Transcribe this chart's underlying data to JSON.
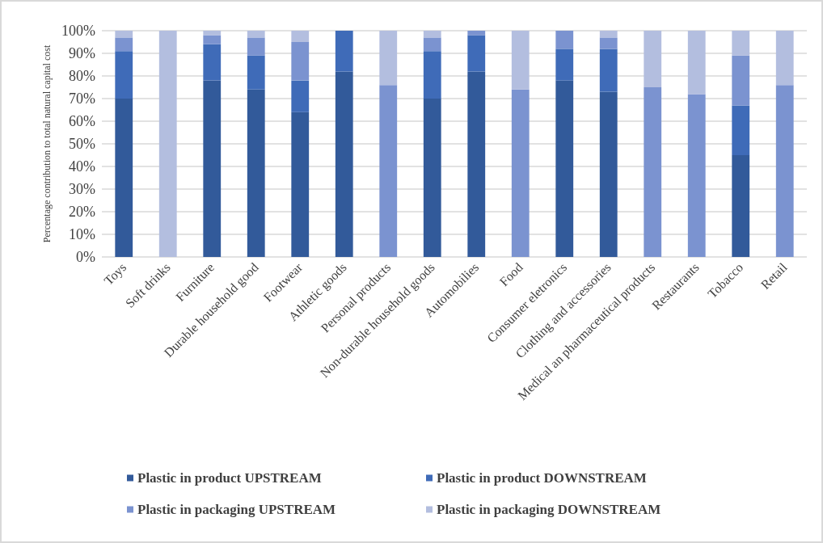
{
  "chart_data": {
    "type": "bar",
    "stacked": true,
    "ylabel": "Percentage contribution to total natural capital cost",
    "categories": [
      "Toys",
      "Soft drinks",
      "Furniture",
      "Durable household good",
      "Footwear",
      "Athletic goods",
      "Personal products",
      "Non-durable household goods",
      "Automobilies",
      "Food",
      "Consumer eletronics",
      "Clothing and accessories",
      "Medical an pharmaceutical products",
      "Restaurants",
      "Tobacco",
      "Retail"
    ],
    "series": [
      {
        "name": "Plastic in product UPSTREAM",
        "color": "#325a9a",
        "values": [
          70,
          0,
          78,
          74,
          64,
          82,
          0,
          70,
          82,
          0,
          78,
          73,
          0,
          0,
          45,
          0
        ]
      },
      {
        "name": "Plastic in product DOWNSTREAM",
        "color": "#3f6bb8",
        "values": [
          21,
          0,
          16,
          15,
          14,
          18,
          0,
          21,
          16,
          0,
          14,
          19,
          0,
          0,
          22,
          0
        ]
      },
      {
        "name": "Plastic in packaging UPSTREAM",
        "color": "#7b93d0",
        "values": [
          6,
          0,
          4,
          8,
          17,
          0,
          76,
          6,
          2,
          74,
          8,
          5,
          75,
          72,
          22,
          76
        ]
      },
      {
        "name": "Plastic in packaging DOWNSTREAM",
        "color": "#b3bedf",
        "values": [
          3,
          100,
          2,
          3,
          5,
          0,
          24,
          3,
          0,
          26,
          0,
          3,
          25,
          28,
          11,
          24
        ]
      }
    ],
    "ylim": [
      0,
      100
    ],
    "yticks": [
      {
        "value": 0,
        "label": "0%"
      },
      {
        "value": 10,
        "label": "10%"
      },
      {
        "value": 20,
        "label": "20%"
      },
      {
        "value": 30,
        "label": "30%"
      },
      {
        "value": 40,
        "label": "40%"
      },
      {
        "value": 50,
        "label": "50%"
      },
      {
        "value": 60,
        "label": "60%"
      },
      {
        "value": 70,
        "label": "70%"
      },
      {
        "value": 80,
        "label": "80%"
      },
      {
        "value": 90,
        "label": "90%"
      },
      {
        "value": 100,
        "label": "100%"
      }
    ],
    "grid": "y",
    "legend": "bottom"
  }
}
